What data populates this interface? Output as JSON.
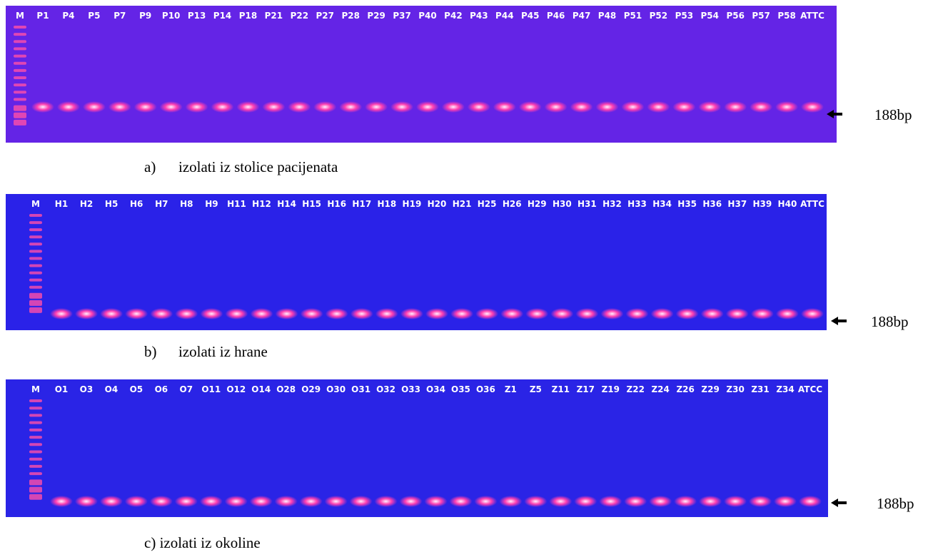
{
  "panels": [
    {
      "lanes": [
        "M",
        "P1",
        "P4",
        "P5",
        "P7",
        "P9",
        "P10",
        "P13",
        "P14",
        "P18",
        "P21",
        "P22",
        "P27",
        "P28",
        "P29",
        "P37",
        "P40",
        "P42",
        "P43",
        "P44",
        "P45",
        "P46",
        "P47",
        "P48",
        "P51",
        "P52",
        "P53",
        "P54",
        "P56",
        "P57",
        "P58",
        "ATTC"
      ],
      "size_label": "188bp",
      "caption_marker": "a)",
      "caption": "izolati iz stolice pacijenata"
    },
    {
      "lanes": [
        "M",
        "H1",
        "H2",
        "H5",
        "H6",
        "H7",
        "H8",
        "H9",
        "H11",
        "H12",
        "H14",
        "H15",
        "H16",
        "H17",
        "H18",
        "H19",
        "H20",
        "H21",
        "H25",
        "H26",
        "H29",
        "H30",
        "H31",
        "H32",
        "H33",
        "H34",
        "H35",
        "H36",
        "H37",
        "H39",
        "H40",
        "ATTC"
      ],
      "size_label": "188bp",
      "caption_marker": "b)",
      "caption": "izolati iz hrane"
    },
    {
      "lanes": [
        "M",
        "O1",
        "O3",
        "O4",
        "O5",
        "O6",
        "O7",
        "O11",
        "O12",
        "O14",
        "O28",
        "O29",
        "O30",
        "O31",
        "O32",
        "O33",
        "O34",
        "O35",
        "O36",
        "Z1",
        "Z5",
        "Z11",
        "Z17",
        "Z19",
        "Z22",
        "Z24",
        "Z26",
        "Z29",
        "Z30",
        "Z31",
        "Z34",
        "ATCC"
      ],
      "size_label": "188bp",
      "caption": "c) izolati iz okoline"
    }
  ]
}
